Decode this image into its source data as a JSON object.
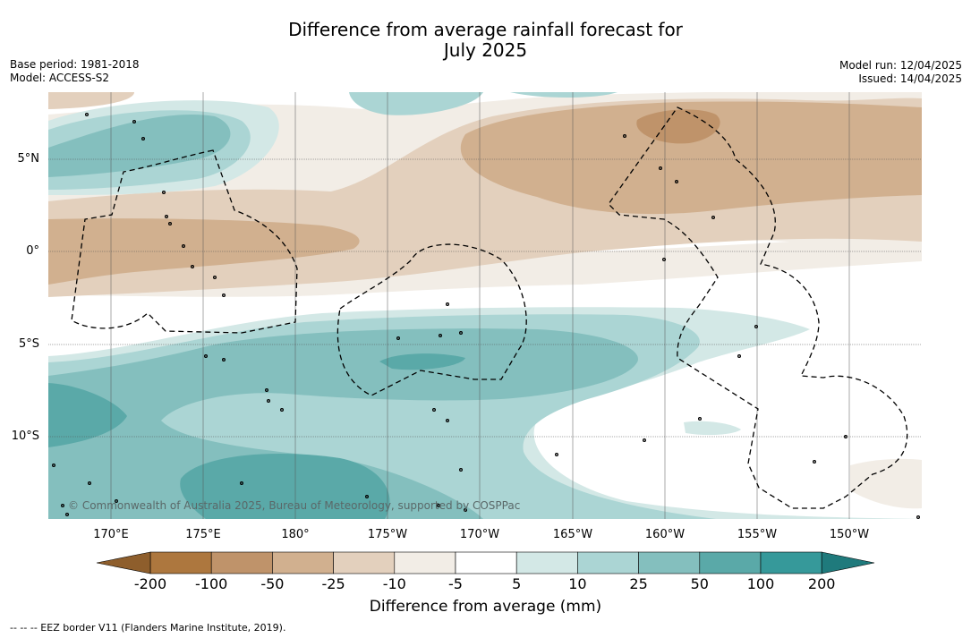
{
  "title": {
    "line1": "Difference from average rainfall forecast for",
    "line2": "July 2025"
  },
  "meta_left": {
    "base_period": "Base period: 1981-2018",
    "model": "Model: ACCESS-S2"
  },
  "meta_right": {
    "model_run": "Model run: 12/04/2025",
    "issued": "Issued: 14/04/2025"
  },
  "map": {
    "lon_labels": [
      "170°E",
      "175°E",
      "180°",
      "175°W",
      "170°W",
      "165°W",
      "160°W",
      "155°W",
      "150°W"
    ],
    "lat_labels": [
      "5°N",
      "0°",
      "5°S",
      "10°S"
    ],
    "copyright": "© Commonwealth of Australia 2025, Bureau of Meteorology, supported by COSPPac",
    "border_style": "dashed"
  },
  "colorbar": {
    "ticks": [
      "-200",
      "-100",
      "-50",
      "-25",
      "-10",
      "-5",
      "5",
      "10",
      "25",
      "50",
      "100",
      "200"
    ],
    "colors": {
      "below_min": "#8e5e2c",
      "bins": [
        "#ad773e",
        "#bf936a",
        "#d1b08f",
        "#e3d0bd",
        "#f2ede6",
        "#ffffff",
        "#d3e8e6",
        "#abd5d4",
        "#84bfbe",
        "#5aa9a8",
        "#36999a"
      ],
      "above_max": "#1f7a7c"
    },
    "title": "Difference from average (mm)"
  },
  "footer": "--  --  -- EEZ border V11 (Flanders Marine Institute, 2019)."
}
